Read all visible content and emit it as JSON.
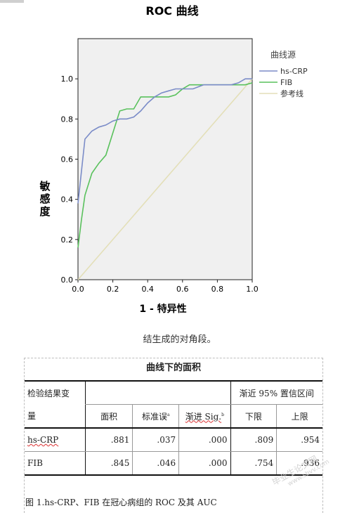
{
  "chart_data": {
    "type": "line",
    "title": "ROC 曲线",
    "xlabel": "1 - 特异性",
    "ylabel": "敏感度",
    "xlim": [
      0,
      1
    ],
    "ylim": [
      0,
      1.2
    ],
    "x_ticks": [
      "0.0",
      "0.2",
      "0.4",
      "0.6",
      "0.8",
      "1.0"
    ],
    "y_ticks": [
      "0.0",
      "0.2",
      "0.4",
      "0.6",
      "0.8",
      "1.0"
    ],
    "legend_title": "曲线源",
    "legend_position": "top-right",
    "grid": false,
    "series": [
      {
        "name": "hs-CRP",
        "color": "#7b8cc8",
        "points": [
          [
            0,
            0.38
          ],
          [
            0.04,
            0.7
          ],
          [
            0.08,
            0.74
          ],
          [
            0.12,
            0.76
          ],
          [
            0.16,
            0.77
          ],
          [
            0.2,
            0.79
          ],
          [
            0.24,
            0.8
          ],
          [
            0.28,
            0.8
          ],
          [
            0.32,
            0.81
          ],
          [
            0.36,
            0.84
          ],
          [
            0.4,
            0.88
          ],
          [
            0.44,
            0.91
          ],
          [
            0.48,
            0.93
          ],
          [
            0.52,
            0.94
          ],
          [
            0.56,
            0.95
          ],
          [
            0.6,
            0.95
          ],
          [
            0.66,
            0.95
          ],
          [
            0.72,
            0.97
          ],
          [
            0.8,
            0.97
          ],
          [
            0.88,
            0.97
          ],
          [
            0.92,
            0.98
          ],
          [
            0.96,
            1.0
          ],
          [
            1.0,
            1.0
          ]
        ]
      },
      {
        "name": "FIB",
        "color": "#59c15c",
        "points": [
          [
            0,
            0.16
          ],
          [
            0.02,
            0.3
          ],
          [
            0.04,
            0.42
          ],
          [
            0.08,
            0.53
          ],
          [
            0.12,
            0.58
          ],
          [
            0.16,
            0.62
          ],
          [
            0.2,
            0.73
          ],
          [
            0.24,
            0.84
          ],
          [
            0.28,
            0.85
          ],
          [
            0.32,
            0.85
          ],
          [
            0.36,
            0.91
          ],
          [
            0.4,
            0.91
          ],
          [
            0.46,
            0.91
          ],
          [
            0.52,
            0.91
          ],
          [
            0.56,
            0.92
          ],
          [
            0.6,
            0.95
          ],
          [
            0.64,
            0.97
          ],
          [
            0.72,
            0.97
          ],
          [
            0.8,
            0.97
          ],
          [
            0.88,
            0.97
          ],
          [
            0.96,
            0.97
          ],
          [
            1.0,
            0.98
          ]
        ]
      },
      {
        "name": "参考线",
        "color": "#e3dfb8",
        "points": [
          [
            0,
            0
          ],
          [
            1,
            1
          ]
        ]
      }
    ]
  },
  "note_line": "结生成的对角段。",
  "auc_table": {
    "title": "曲线下的面积",
    "var_header_line1": "检验结果变",
    "var_header_line2": "量",
    "ci_header": "渐近 95% 置信区间",
    "col_area": "面积",
    "col_se": "标准误",
    "col_se_mark": "a",
    "col_sig": "渐进 Sig.",
    "col_sig_mark": "b",
    "col_lower": "下限",
    "col_upper": "上限",
    "rows": [
      {
        "label": "hs-CRP",
        "area": ".881",
        "se": ".037",
        "sig": ".000",
        "lower": ".809",
        "upper": ".954"
      },
      {
        "label": "FIB",
        "area": ".845",
        "se": ".046",
        "sig": ".000",
        "lower": ".754",
        "upper": ".936"
      }
    ]
  },
  "figure_caption": "图 1.hs-CRP、FIB 在冠心病组的 ROC 及其 AUC",
  "watermark": {
    "line1": "毕业生论文网",
    "line2": "www.sbvv.com"
  }
}
